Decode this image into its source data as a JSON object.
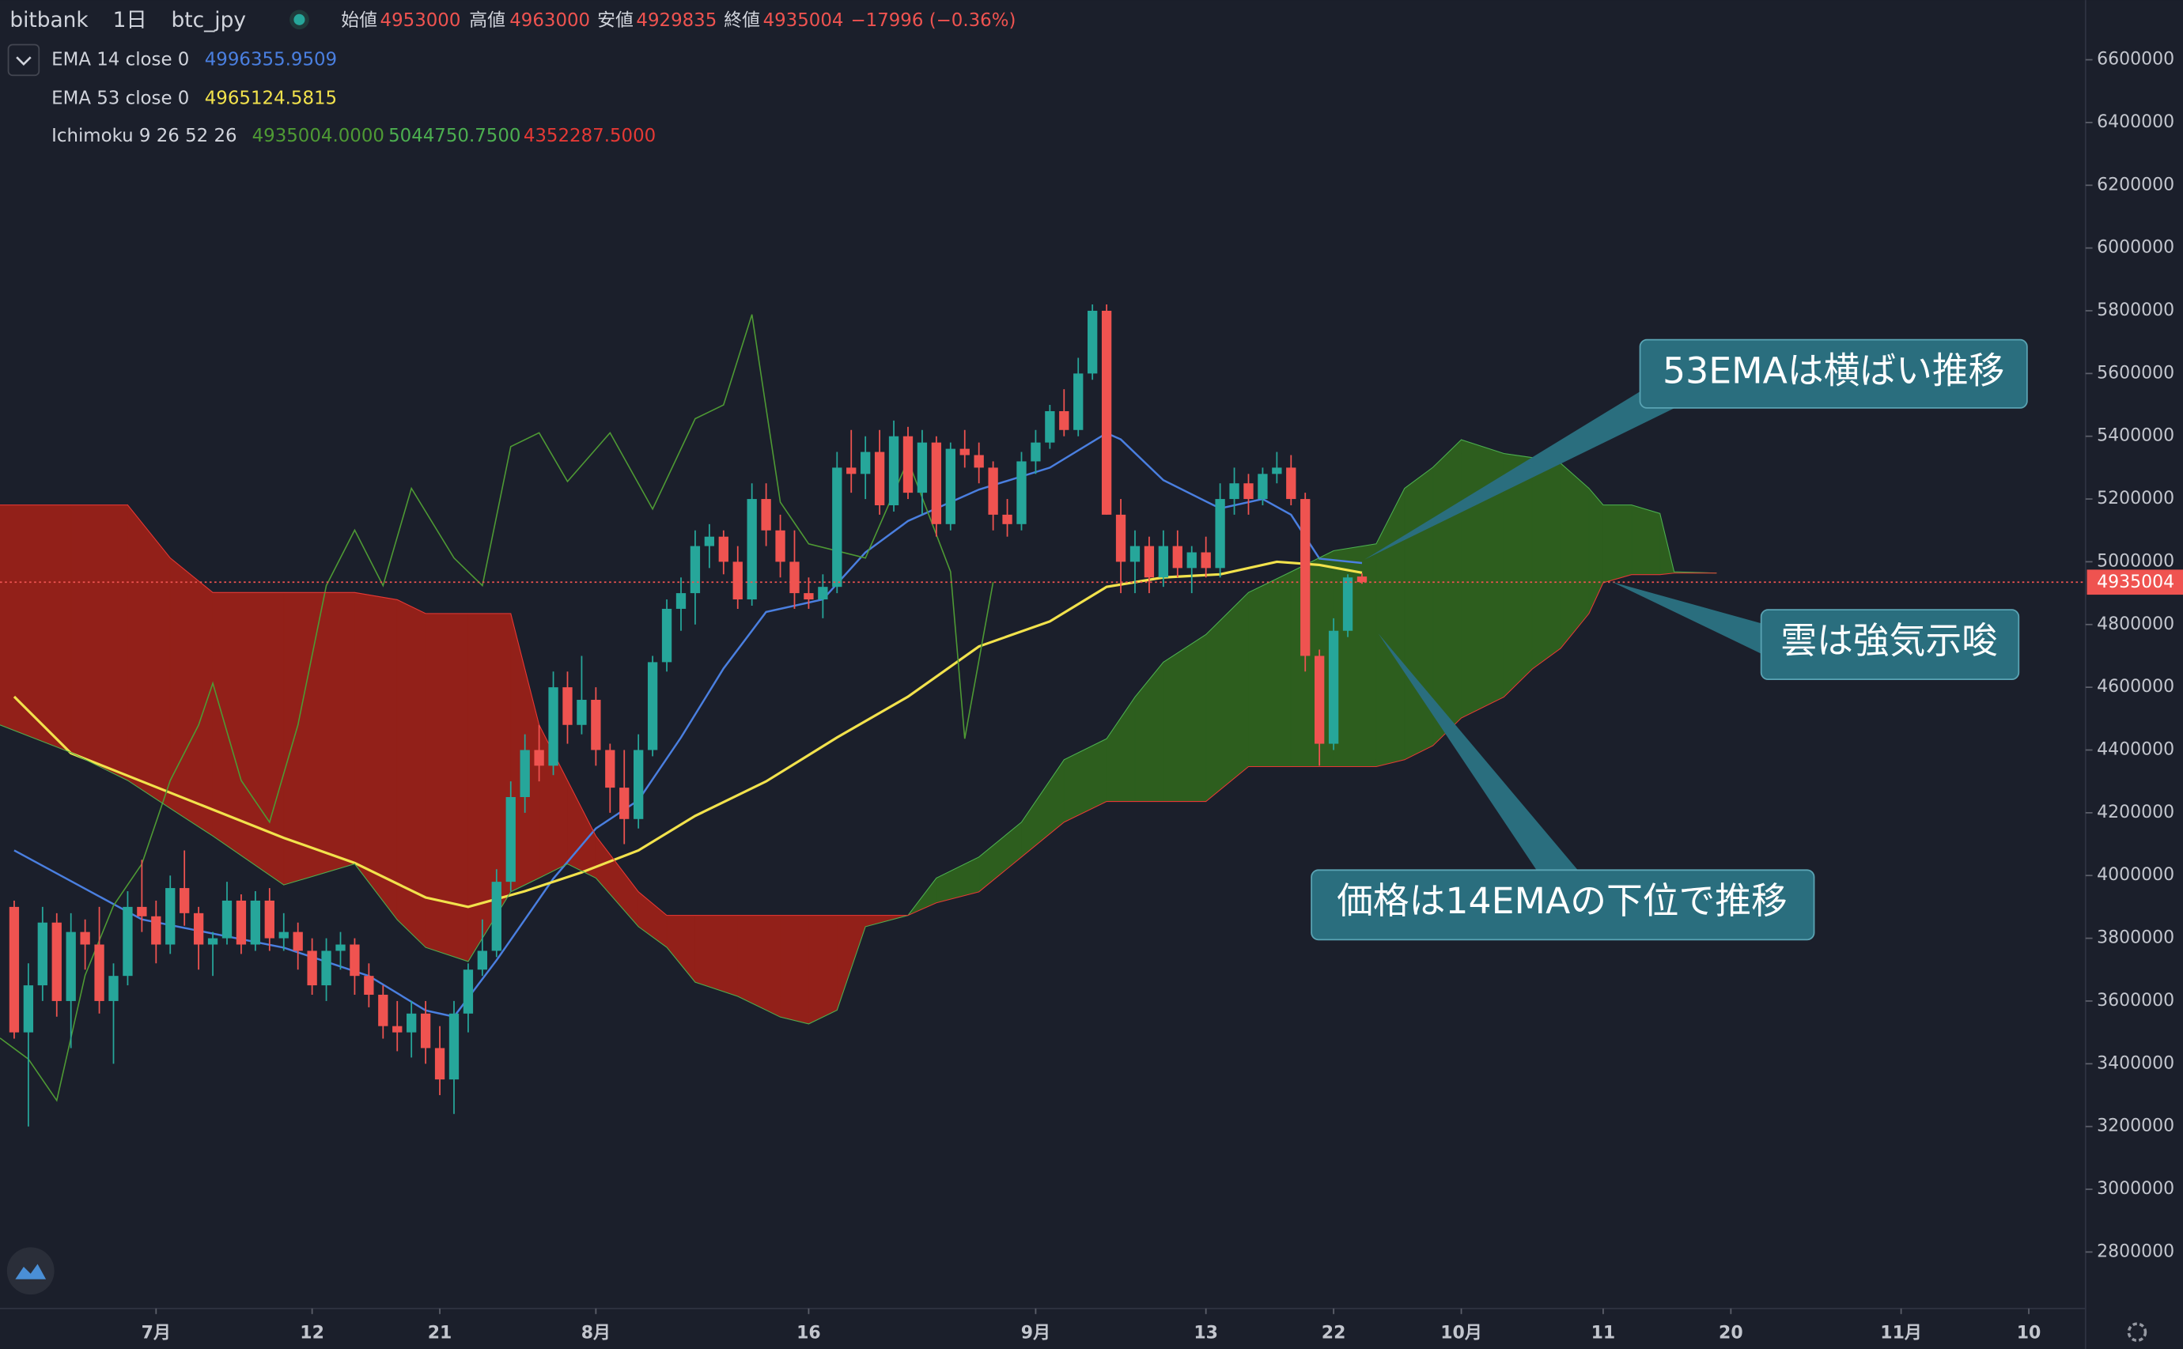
{
  "header": {
    "exchange": "bitbank",
    "interval": "1日",
    "symbol": "btc_jpy",
    "open_label": "始値",
    "high_label": "高値",
    "low_label": "安値",
    "close_label": "終値",
    "change": "−17996 (−0.36%)"
  },
  "chart_data": {
    "type": "candlestick",
    "up_color": "#26a69a",
    "down_color": "#ef5350",
    "cloud_up_color": "#2d5e1e",
    "cloud_down_color": "#922019",
    "xlim": [
      0,
      147
    ],
    "xticks": [
      {
        "value": 11,
        "label": "7月"
      },
      {
        "value": 22,
        "label": "12"
      },
      {
        "value": 31,
        "label": "21"
      },
      {
        "value": 42,
        "label": "8月"
      },
      {
        "value": 57,
        "label": "16"
      },
      {
        "value": 73,
        "label": "9月"
      },
      {
        "value": 85,
        "label": "13"
      },
      {
        "value": 94,
        "label": "22"
      },
      {
        "value": 103,
        "label": "10月"
      },
      {
        "value": 113,
        "label": "11"
      },
      {
        "value": 122,
        "label": "20"
      },
      {
        "value": 134,
        "label": "11月"
      },
      {
        "value": 143,
        "label": "10"
      }
    ],
    "ylim": [
      2620000,
      6790000
    ],
    "yticks": [
      2800000,
      3000000,
      3200000,
      3400000,
      3600000,
      3800000,
      4000000,
      4200000,
      4400000,
      4600000,
      4800000,
      5000000,
      5200000,
      5400000,
      5600000,
      5800000,
      6000000,
      6200000,
      6400000,
      6600000
    ],
    "candles": {
      "x": [
        1,
        2,
        3,
        4,
        5,
        6,
        7,
        8,
        9,
        10,
        11,
        12,
        13,
        14,
        15,
        16,
        17,
        18,
        19,
        20,
        21,
        22,
        23,
        24,
        25,
        26,
        27,
        28,
        29,
        30,
        31,
        32,
        33,
        34,
        35,
        36,
        37,
        38,
        39,
        40,
        41,
        42,
        43,
        44,
        45,
        46,
        47,
        48,
        49,
        50,
        51,
        52,
        53,
        54,
        55,
        56,
        57,
        58,
        59,
        60,
        61,
        62,
        63,
        64,
        65,
        66,
        67,
        68,
        69,
        70,
        71,
        72,
        73,
        74,
        75,
        76,
        77,
        78,
        79,
        80,
        81,
        82,
        83,
        84,
        85,
        86,
        87,
        88,
        89,
        90,
        91,
        92,
        93,
        94,
        95,
        96
      ],
      "open": [
        3900000,
        3500000,
        3650000,
        3850000,
        3600000,
        3820000,
        3780000,
        3600000,
        3680000,
        3900000,
        3870000,
        3780000,
        3960000,
        3880000,
        3780000,
        3800000,
        3920000,
        3780000,
        3920000,
        3800000,
        3820000,
        3760000,
        3650000,
        3760000,
        3780000,
        3680000,
        3620000,
        3520000,
        3500000,
        3560000,
        3450000,
        3350000,
        3560000,
        3700000,
        3760000,
        3980000,
        4250000,
        4400000,
        4350000,
        4600000,
        4480000,
        4560000,
        4400000,
        4280000,
        4180000,
        4400000,
        4680000,
        4850000,
        4900000,
        5050000,
        5080000,
        5000000,
        4880000,
        5200000,
        5100000,
        5000000,
        4900000,
        4880000,
        4920000,
        5300000,
        5280000,
        5350000,
        5180000,
        5400000,
        5220000,
        5380000,
        5120000,
        5360000,
        5340000,
        5300000,
        5150000,
        5120000,
        5320000,
        5380000,
        5480000,
        5420000,
        5600000,
        5800000,
        5150000,
        5000000,
        5050000,
        4950000,
        5050000,
        4980000,
        5030000,
        4980000,
        5200000,
        5250000,
        5200000,
        5280000,
        5300000,
        5200000,
        4700000,
        4420000,
        4780000,
        4953000
      ],
      "high": [
        3920000,
        3720000,
        3900000,
        3880000,
        3880000,
        3860000,
        3900000,
        3720000,
        3950000,
        4050000,
        3920000,
        4000000,
        4080000,
        3900000,
        3820000,
        3980000,
        3940000,
        3950000,
        3960000,
        3880000,
        3850000,
        3800000,
        3800000,
        3820000,
        3800000,
        3720000,
        3650000,
        3600000,
        3600000,
        3600000,
        3520000,
        3600000,
        3720000,
        3860000,
        4020000,
        4300000,
        4450000,
        4480000,
        4650000,
        4650000,
        4700000,
        4600000,
        4420000,
        4400000,
        4450000,
        4700000,
        4880000,
        4950000,
        5100000,
        5120000,
        5100000,
        5050000,
        5250000,
        5250000,
        5150000,
        5100000,
        4950000,
        4960000,
        5350000,
        5420000,
        5400000,
        5420000,
        5450000,
        5430000,
        5420000,
        5400000,
        5380000,
        5420000,
        5380000,
        5320000,
        5200000,
        5350000,
        5420000,
        5500000,
        5550000,
        5650000,
        5820000,
        5820000,
        5200000,
        5100000,
        5080000,
        5100000,
        5100000,
        5050000,
        5080000,
        5250000,
        5300000,
        5280000,
        5300000,
        5350000,
        5340000,
        5220000,
        4720000,
        4820000,
        4960000,
        4963000
      ],
      "low": [
        3480000,
        3200000,
        3600000,
        3550000,
        3450000,
        3700000,
        3560000,
        3400000,
        3650000,
        3820000,
        3720000,
        3750000,
        3840000,
        3700000,
        3680000,
        3780000,
        3750000,
        3760000,
        3760000,
        3760000,
        3700000,
        3620000,
        3600000,
        3700000,
        3620000,
        3580000,
        3480000,
        3440000,
        3420000,
        3400000,
        3300000,
        3240000,
        3500000,
        3680000,
        3740000,
        3950000,
        4200000,
        4300000,
        4320000,
        4420000,
        4450000,
        4350000,
        4200000,
        4100000,
        4150000,
        4380000,
        4650000,
        4780000,
        4800000,
        4980000,
        4960000,
        4850000,
        4860000,
        5050000,
        4950000,
        4850000,
        4850000,
        4820000,
        4900000,
        5220000,
        5200000,
        5150000,
        5160000,
        5200000,
        5150000,
        5080000,
        5100000,
        5300000,
        5250000,
        5100000,
        5080000,
        5100000,
        5280000,
        5360000,
        5400000,
        5400000,
        5580000,
        5150000,
        4900000,
        4900000,
        4900000,
        4920000,
        4950000,
        4900000,
        4950000,
        4950000,
        5150000,
        5150000,
        5180000,
        5250000,
        5180000,
        4650000,
        4350000,
        4400000,
        4760000,
        4929835
      ],
      "close": [
        3500000,
        3650000,
        3850000,
        3600000,
        3820000,
        3780000,
        3600000,
        3680000,
        3900000,
        3870000,
        3780000,
        3960000,
        3880000,
        3780000,
        3800000,
        3920000,
        3780000,
        3920000,
        3800000,
        3820000,
        3760000,
        3650000,
        3760000,
        3780000,
        3680000,
        3620000,
        3520000,
        3500000,
        3560000,
        3450000,
        3350000,
        3560000,
        3700000,
        3760000,
        3980000,
        4250000,
        4400000,
        4350000,
        4600000,
        4480000,
        4560000,
        4400000,
        4280000,
        4180000,
        4400000,
        4680000,
        4850000,
        4900000,
        5050000,
        5080000,
        5000000,
        4880000,
        5200000,
        5100000,
        5000000,
        4900000,
        4880000,
        4920000,
        5300000,
        5280000,
        5350000,
        5180000,
        5400000,
        5220000,
        5380000,
        5120000,
        5360000,
        5340000,
        5300000,
        5150000,
        5120000,
        5320000,
        5380000,
        5480000,
        5420000,
        5600000,
        5800000,
        5150000,
        5000000,
        5050000,
        4950000,
        5050000,
        4980000,
        5030000,
        4980000,
        5200000,
        5250000,
        5200000,
        5280000,
        5300000,
        5200000,
        4700000,
        4420000,
        4780000,
        4950000,
        4935004
      ]
    },
    "indicators": [
      {
        "name": "EMA 14 close 0",
        "value_labels": [
          "4996355.9509"
        ],
        "lines": [
          {
            "color": "#4a7fe0",
            "width": 1.4,
            "x": [
              1,
              10,
              20,
              26,
              30,
              32,
              35,
              39,
              42,
              45,
              48,
              51,
              54,
              58,
              61,
              64,
              69,
              74,
              78,
              79,
              82,
              86,
              89,
              91,
              93,
              96
            ],
            "values": [
              4080000,
              3860000,
              3770000,
              3680000,
              3570000,
              3550000,
              3730000,
              3990000,
              4150000,
              4240000,
              4440000,
              4660000,
              4840000,
              4880000,
              5030000,
              5130000,
              5230000,
              5300000,
              5410000,
              5390000,
              5260000,
              5170000,
              5200000,
              5150000,
              5010000,
              4996000
            ]
          }
        ]
      },
      {
        "name": "EMA 53 close 0",
        "value_labels": [
          "4965124.5815"
        ],
        "lines": [
          {
            "color": "#f2e24c",
            "width": 1.8,
            "x": [
              1,
              5,
              10,
              15,
              20,
              25,
              30,
              33,
              37,
              41,
              45,
              49,
              54,
              59,
              64,
              69,
              74,
              78,
              82,
              86,
              90,
              93,
              96
            ],
            "values": [
              4570000,
              4390000,
              4300000,
              4210000,
              4120000,
              4040000,
              3930000,
              3900000,
              3950000,
              4010000,
              4080000,
              4190000,
              4300000,
              4440000,
              4570000,
              4730000,
              4810000,
              4920000,
              4950000,
              4960000,
              5000000,
              4990000,
              4965000
            ]
          }
        ]
      },
      {
        "name": "Ichimoku 9 26 52 26",
        "value_labels": [
          "4935004.0000",
          "5044750.7500",
          "4352287.5000"
        ],
        "lines": [
          {
            "color": "#4e9a34",
            "width": 0.9,
            "x": [
              0,
              2,
              4,
              6,
              8,
              10,
              12,
              14,
              15,
              17,
              19,
              21,
              23,
              25,
              27,
              29,
              32,
              34,
              36,
              38,
              40,
              43,
              46,
              49,
              51,
              53,
              55,
              57,
              61,
              64,
              67,
              68,
              70
            ],
            "values": [
              3482000,
              3415000,
              3283000,
              3682000,
              3904000,
              4037000,
              4303000,
              4480000,
              4613000,
              4303000,
              4170000,
              4480000,
              4924000,
              5101000,
              4924000,
              5234000,
              5012000,
              4924000,
              5367000,
              5411000,
              5256000,
              5411000,
              5168000,
              5456000,
              5500000,
              5788000,
              5190000,
              5057000,
              5012000,
              5323000,
              4968000,
              4436000,
              4935000
            ]
          },
          {
            "color": "#4caf50",
            "width": 0.6,
            "x": [
              0,
              5,
              9,
              12,
              15,
              20,
              25,
              28,
              30,
              33,
              36,
              38,
              40,
              42,
              45,
              47,
              49,
              52,
              55,
              57,
              59,
              61,
              64,
              66,
              69,
              72,
              75,
              78,
              80,
              82,
              85,
              88,
              91,
              94,
              97,
              99,
              101,
              103,
              106,
              108,
              110,
              112,
              113,
              115,
              117,
              118,
              121
            ],
            "values": [
              4480000,
              4392000,
              4303000,
              4214000,
              4126000,
              3970000,
              4037000,
              3859000,
              3771000,
              3726000,
              3948000,
              3992000,
              4037000,
              3992000,
              3837000,
              3771000,
              3660000,
              3615000,
              3549000,
              3527000,
              3571000,
              3837000,
              3873000,
              3992000,
              4059000,
              4170000,
              4369000,
              4436000,
              4569000,
              4680000,
              4768000,
              4902000,
              4968000,
              5035000,
              5057000,
              5234000,
              5301000,
              5389000,
              5345000,
              5332000,
              5314000,
              5234000,
              5181000,
              5181000,
              5154000,
              4968000,
              4964000
            ]
          },
          {
            "color": "#e53935",
            "width": 0.6,
            "x": [
              0,
              5,
              9,
              12,
              15,
              20,
              25,
              28,
              30,
              33,
              36,
              38,
              40,
              42,
              45,
              47,
              49,
              52,
              55,
              57,
              59,
              61,
              64,
              66,
              69,
              72,
              75,
              78,
              80,
              82,
              85,
              88,
              91,
              94,
              97,
              99,
              101,
              103,
              106,
              108,
              110,
              112,
              113,
              115,
              117,
              118,
              121
            ],
            "values": [
              5181000,
              5181000,
              5181000,
              5012000,
              4902000,
              4902000,
              4902000,
              4879000,
              4835000,
              4835000,
              4835000,
              4480000,
              4303000,
              4126000,
              3948000,
              3873000,
              3873000,
              3873000,
              3873000,
              3873000,
              3873000,
              3873000,
              3873000,
              3913000,
              3948000,
              4059000,
              4170000,
              4236000,
              4236000,
              4236000,
              4236000,
              4347000,
              4347000,
              4347000,
              4347000,
              4369000,
              4414000,
              4502000,
              4569000,
              4658000,
              4724000,
              4835000,
              4933000,
              4959000,
              4959000,
              4964000,
              4964000
            ]
          }
        ]
      }
    ],
    "annotations": [
      "53EMAは横ばい推移",
      "雲は強気示唆",
      "価格は14EMAの下位で推移"
    ]
  }
}
